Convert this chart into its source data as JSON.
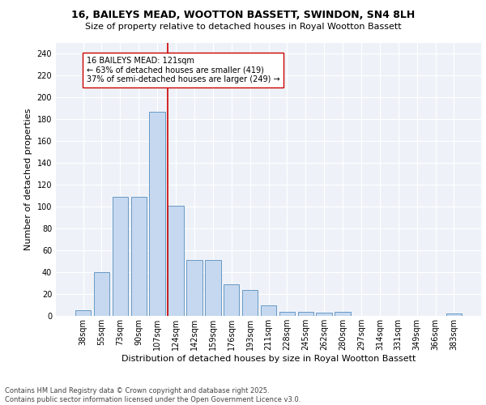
{
  "title": "16, BAILEYS MEAD, WOOTTON BASSETT, SWINDON, SN4 8LH",
  "subtitle": "Size of property relative to detached houses in Royal Wootton Bassett",
  "xlabel": "Distribution of detached houses by size in Royal Wootton Bassett",
  "ylabel": "Number of detached properties",
  "categories": [
    "38sqm",
    "55sqm",
    "73sqm",
    "90sqm",
    "107sqm",
    "124sqm",
    "142sqm",
    "159sqm",
    "176sqm",
    "193sqm",
    "211sqm",
    "228sqm",
    "245sqm",
    "262sqm",
    "280sqm",
    "297sqm",
    "314sqm",
    "331sqm",
    "349sqm",
    "366sqm",
    "383sqm"
  ],
  "values": [
    5,
    40,
    109,
    109,
    187,
    101,
    51,
    51,
    29,
    24,
    10,
    4,
    4,
    3,
    4,
    0,
    0,
    0,
    0,
    0,
    2
  ],
  "bar_color": "#c5d8f0",
  "bar_edge_color": "#6899c4",
  "annotation_text_line1": "16 BAILEYS MEAD: 121sqm",
  "annotation_text_line2": "← 63% of detached houses are smaller (419)",
  "annotation_text_line3": "37% of semi-detached houses are larger (249) →",
  "vline_color": "#cc0000",
  "background_color": "#eef2f8",
  "grid_color": "#ffffff",
  "footer_text": "Contains HM Land Registry data © Crown copyright and database right 2025.\nContains public sector information licensed under the Open Government Licence v3.0.",
  "ylim": [
    0,
    250
  ],
  "yticks": [
    0,
    20,
    40,
    60,
    80,
    100,
    120,
    140,
    160,
    180,
    200,
    220,
    240
  ],
  "title_fontsize": 9,
  "subtitle_fontsize": 8,
  "ylabel_fontsize": 8,
  "xlabel_fontsize": 8,
  "tick_fontsize": 7,
  "annot_fontsize": 7,
  "footer_fontsize": 6
}
